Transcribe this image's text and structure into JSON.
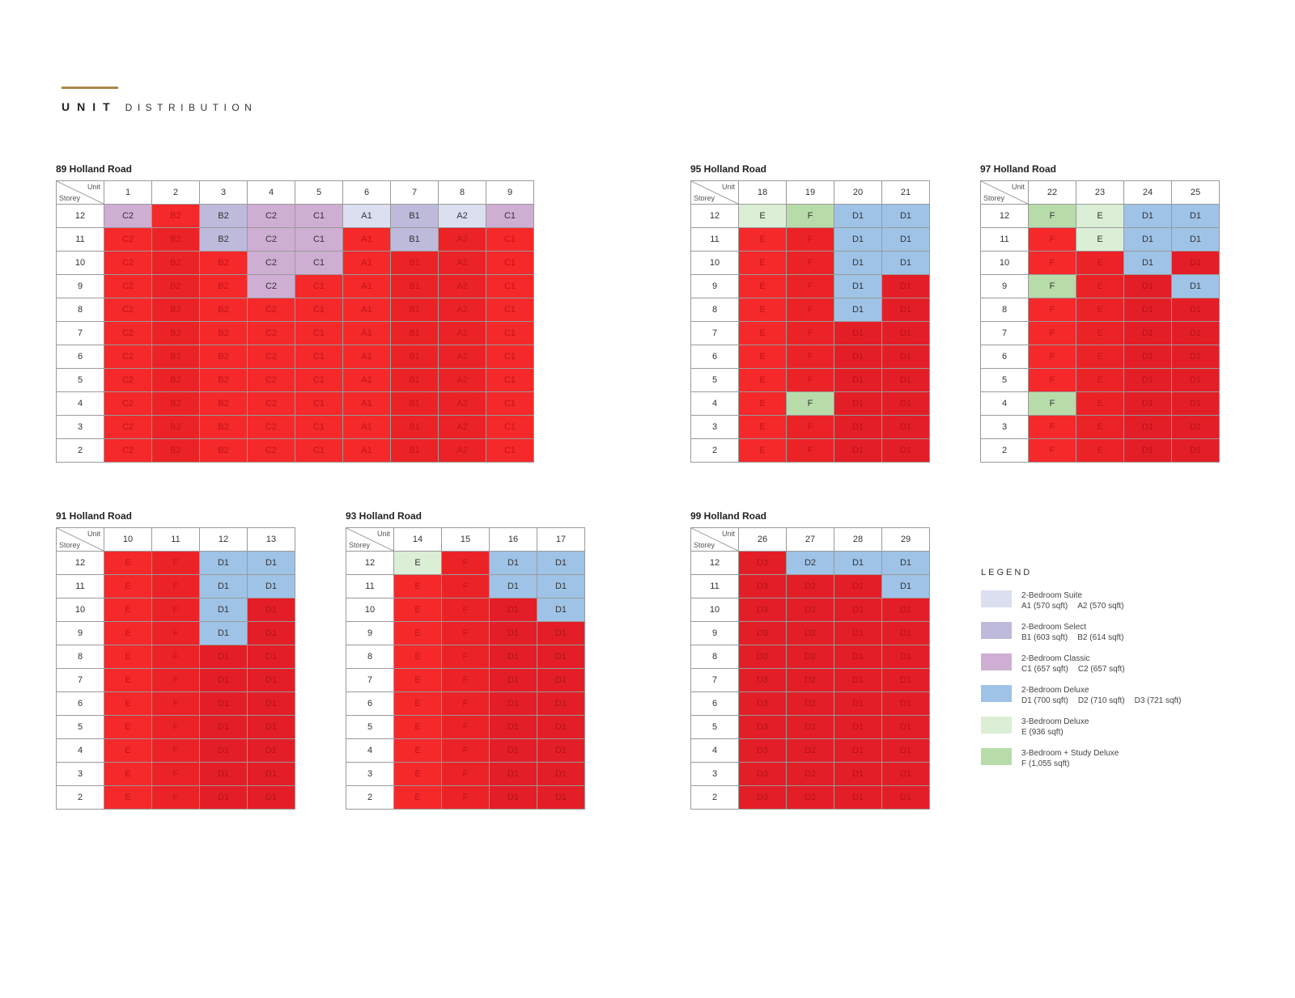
{
  "header": {
    "title_bold": "UNIT",
    "title_light": "DISTRIBUTION"
  },
  "corner": {
    "unit": "Unit",
    "storey": "Storey"
  },
  "colors": {
    "suite": "#dcdff0",
    "select": "#bebadb",
    "classic": "#cfaed3",
    "deluxe": "#9fc3e7",
    "three_bed": "#dbeed6",
    "study": "#b7dca9",
    "sold_red": "#f5282a"
  },
  "storeys": [
    "12",
    "11",
    "10",
    "9",
    "8",
    "7",
    "6",
    "5",
    "4",
    "3",
    "2"
  ],
  "blocks": [
    {
      "title": "89 Holland Road",
      "units": [
        "1",
        "2",
        "3",
        "4",
        "5",
        "6",
        "7",
        "8",
        "9"
      ],
      "rows": [
        [
          "C2",
          "B2",
          "B2",
          "C2",
          "C1",
          "A1",
          "B1",
          "A2",
          "C1"
        ],
        [
          "C2",
          "B2",
          "B2",
          "C2",
          "C1",
          "A1",
          "B1",
          "A2",
          "C1"
        ],
        [
          "C2",
          "B2",
          "B2",
          "C2",
          "C1",
          "A1",
          "B1",
          "A2",
          "C1"
        ],
        [
          "C2",
          "B2",
          "B2",
          "C2",
          "C1",
          "A1",
          "B1",
          "A2",
          "C1"
        ],
        [
          "C2",
          "B2",
          "B2",
          "C2",
          "C1",
          "A1",
          "B1",
          "A2",
          "C1"
        ],
        [
          "C2",
          "B2",
          "B2",
          "C2",
          "C1",
          "A1",
          "B1",
          "A2",
          "C1"
        ],
        [
          "C2",
          "B2",
          "B2",
          "C2",
          "C1",
          "A1",
          "B1",
          "A2",
          "C1"
        ],
        [
          "C2",
          "B2",
          "B2",
          "C2",
          "C1",
          "A1",
          "B1",
          "A2",
          "C1"
        ],
        [
          "C2",
          "B2",
          "B2",
          "C2",
          "C1",
          "A1",
          "B1",
          "A2",
          "C1"
        ],
        [
          "C2",
          "B2",
          "B2",
          "C2",
          "C1",
          "A1",
          "B1",
          "A2",
          "C1"
        ],
        [
          "C2",
          "B2",
          "B2",
          "C2",
          "C1",
          "A1",
          "B1",
          "A2",
          "C1"
        ]
      ],
      "types": [
        [
          "C",
          "R1",
          "Se",
          "C",
          "C",
          "S",
          "Se",
          "S",
          "C"
        ],
        [
          "R1",
          "R2",
          "Se",
          "C",
          "C",
          "R1",
          "Se",
          "R2",
          "R1"
        ],
        [
          "R1",
          "R2",
          "R1",
          "C",
          "C",
          "R1",
          "R2",
          "R2",
          "R1"
        ],
        [
          "R1",
          "R2",
          "R1",
          "C",
          "R1",
          "R1",
          "R2",
          "R2",
          "R1"
        ],
        [
          "R1",
          "R2",
          "R1",
          "R1",
          "R1",
          "R1",
          "R2",
          "R2",
          "R1"
        ],
        [
          "R1",
          "R2",
          "R1",
          "R1",
          "R1",
          "R1",
          "R2",
          "R2",
          "R1"
        ],
        [
          "R1",
          "R2",
          "R1",
          "R1",
          "R1",
          "R1",
          "R2",
          "R2",
          "R1"
        ],
        [
          "R1",
          "R2",
          "R1",
          "R1",
          "R1",
          "R1",
          "R2",
          "R2",
          "R1"
        ],
        [
          "R1",
          "R2",
          "R1",
          "R1",
          "R1",
          "R1",
          "R2",
          "R2",
          "R1"
        ],
        [
          "R1",
          "R2",
          "R1",
          "R1",
          "R1",
          "R1",
          "R2",
          "R2",
          "R1"
        ],
        [
          "R1",
          "R2",
          "R1",
          "R1",
          "R1",
          "R1",
          "R2",
          "R2",
          "R1"
        ]
      ]
    },
    {
      "title": "95 Holland Road",
      "units": [
        "18",
        "19",
        "20",
        "21"
      ],
      "rows": [
        [
          "E",
          "F",
          "D1",
          "D1"
        ],
        [
          "E",
          "F",
          "D1",
          "D1"
        ],
        [
          "E",
          "F",
          "D1",
          "D1"
        ],
        [
          "E",
          "F",
          "D1",
          "D1"
        ],
        [
          "E",
          "F",
          "D1",
          "D1"
        ],
        [
          "E",
          "F",
          "D1",
          "D1"
        ],
        [
          "E",
          "F",
          "D1",
          "D1"
        ],
        [
          "E",
          "F",
          "D1",
          "D1"
        ],
        [
          "E",
          "F",
          "D1",
          "D1"
        ],
        [
          "E",
          "F",
          "D1",
          "D1"
        ],
        [
          "E",
          "F",
          "D1",
          "D1"
        ]
      ],
      "types": [
        [
          "E",
          "F",
          "D",
          "D"
        ],
        [
          "R1",
          "R2",
          "D",
          "D"
        ],
        [
          "R1",
          "R2",
          "D",
          "D"
        ],
        [
          "R1",
          "R2",
          "D",
          "R3"
        ],
        [
          "R1",
          "R2",
          "D",
          "R3"
        ],
        [
          "R1",
          "R2",
          "R3",
          "R3"
        ],
        [
          "R1",
          "R2",
          "R3",
          "R3"
        ],
        [
          "R1",
          "R2",
          "R3",
          "R3"
        ],
        [
          "R1",
          "F",
          "R3",
          "R3"
        ],
        [
          "R1",
          "R2",
          "R3",
          "R3"
        ],
        [
          "R1",
          "R2",
          "R3",
          "R3"
        ]
      ]
    },
    {
      "title": "97 Holland Road",
      "units": [
        "22",
        "23",
        "24",
        "25"
      ],
      "rows": [
        [
          "F",
          "E",
          "D1",
          "D1"
        ],
        [
          "F",
          "E",
          "D1",
          "D1"
        ],
        [
          "F",
          "E",
          "D1",
          "D1"
        ],
        [
          "F",
          "E",
          "D1",
          "D1"
        ],
        [
          "F",
          "E",
          "D1",
          "D1"
        ],
        [
          "F",
          "E",
          "D1",
          "D1"
        ],
        [
          "F",
          "E",
          "D1",
          "D1"
        ],
        [
          "F",
          "E",
          "D1",
          "D1"
        ],
        [
          "F",
          "E",
          "D1",
          "D1"
        ],
        [
          "F",
          "E",
          "D1",
          "D1"
        ],
        [
          "F",
          "E",
          "D1",
          "D1"
        ]
      ],
      "types": [
        [
          "F",
          "E",
          "D",
          "D"
        ],
        [
          "R1",
          "E",
          "D",
          "D"
        ],
        [
          "R1",
          "R2",
          "D",
          "R3"
        ],
        [
          "F",
          "R2",
          "R3",
          "D"
        ],
        [
          "R1",
          "R2",
          "R3",
          "R3"
        ],
        [
          "R1",
          "R2",
          "R3",
          "R3"
        ],
        [
          "R1",
          "R2",
          "R3",
          "R3"
        ],
        [
          "R1",
          "R2",
          "R3",
          "R3"
        ],
        [
          "F",
          "R2",
          "R3",
          "R3"
        ],
        [
          "R1",
          "R2",
          "R3",
          "R3"
        ],
        [
          "R1",
          "R2",
          "R3",
          "R3"
        ]
      ]
    },
    {
      "title": "91 Holland Road",
      "units": [
        "10",
        "11",
        "12",
        "13"
      ],
      "rows": [
        [
          "E",
          "F",
          "D1",
          "D1"
        ],
        [
          "E",
          "F",
          "D1",
          "D1"
        ],
        [
          "E",
          "F",
          "D1",
          "D1"
        ],
        [
          "E",
          "F",
          "D1",
          "D1"
        ],
        [
          "E",
          "F",
          "D1",
          "D1"
        ],
        [
          "E",
          "F",
          "D1",
          "D1"
        ],
        [
          "E",
          "F",
          "D1",
          "D1"
        ],
        [
          "E",
          "F",
          "D1",
          "D1"
        ],
        [
          "E",
          "F",
          "D1",
          "D1"
        ],
        [
          "E",
          "F",
          "D1",
          "D1"
        ],
        [
          "E",
          "F",
          "D1",
          "D1"
        ]
      ],
      "types": [
        [
          "R1",
          "R2",
          "D",
          "D"
        ],
        [
          "R1",
          "R2",
          "D",
          "D"
        ],
        [
          "R1",
          "R2",
          "D",
          "R3"
        ],
        [
          "R1",
          "R2",
          "D",
          "R3"
        ],
        [
          "R1",
          "R2",
          "R3",
          "R3"
        ],
        [
          "R1",
          "R2",
          "R3",
          "R3"
        ],
        [
          "R1",
          "R2",
          "R3",
          "R3"
        ],
        [
          "R1",
          "R2",
          "R3",
          "R3"
        ],
        [
          "R1",
          "R2",
          "R3",
          "R3"
        ],
        [
          "R1",
          "R2",
          "R3",
          "R3"
        ],
        [
          "R1",
          "R2",
          "R3",
          "R3"
        ]
      ]
    },
    {
      "title": "93 Holland Road",
      "units": [
        "14",
        "15",
        "16",
        "17"
      ],
      "rows": [
        [
          "E",
          "F",
          "D1",
          "D1"
        ],
        [
          "E",
          "F",
          "D1",
          "D1"
        ],
        [
          "E",
          "F",
          "D1",
          "D1"
        ],
        [
          "E",
          "F",
          "D1",
          "D1"
        ],
        [
          "E",
          "F",
          "D1",
          "D1"
        ],
        [
          "E",
          "F",
          "D1",
          "D1"
        ],
        [
          "E",
          "F",
          "D1",
          "D1"
        ],
        [
          "E",
          "F",
          "D1",
          "D1"
        ],
        [
          "E",
          "F",
          "D1",
          "D1"
        ],
        [
          "E",
          "F",
          "D1",
          "D1"
        ],
        [
          "E",
          "F",
          "D1",
          "D1"
        ]
      ],
      "types": [
        [
          "E",
          "R2",
          "D",
          "D"
        ],
        [
          "R1",
          "R2",
          "D",
          "D"
        ],
        [
          "R1",
          "R2",
          "R3",
          "D"
        ],
        [
          "R1",
          "R2",
          "R3",
          "R3"
        ],
        [
          "R1",
          "R2",
          "R3",
          "R3"
        ],
        [
          "R1",
          "R2",
          "R3",
          "R3"
        ],
        [
          "R1",
          "R2",
          "R3",
          "R3"
        ],
        [
          "R1",
          "R2",
          "R3",
          "R3"
        ],
        [
          "R1",
          "R2",
          "R3",
          "R3"
        ],
        [
          "R1",
          "R2",
          "R3",
          "R3"
        ],
        [
          "R1",
          "R2",
          "R3",
          "R3"
        ]
      ]
    },
    {
      "title": "99 Holland Road",
      "units": [
        "26",
        "27",
        "28",
        "29"
      ],
      "rows": [
        [
          "D3",
          "D2",
          "D1",
          "D1"
        ],
        [
          "D3",
          "D2",
          "D1",
          "D1"
        ],
        [
          "D3",
          "D2",
          "D1",
          "D1"
        ],
        [
          "D3",
          "D2",
          "D1",
          "D1"
        ],
        [
          "D3",
          "D2",
          "D1",
          "D1"
        ],
        [
          "D3",
          "D2",
          "D1",
          "D1"
        ],
        [
          "D3",
          "D2",
          "D1",
          "D1"
        ],
        [
          "D3",
          "D2",
          "D1",
          "D1"
        ],
        [
          "D3",
          "D2",
          "D1",
          "D1"
        ],
        [
          "D3",
          "D2",
          "D1",
          "D1"
        ],
        [
          "D3",
          "D2",
          "D1",
          "D1"
        ]
      ],
      "types": [
        [
          "R3",
          "D",
          "D",
          "D"
        ],
        [
          "R3",
          "R3",
          "R3",
          "D"
        ],
        [
          "R3",
          "R3",
          "R3",
          "R3"
        ],
        [
          "R3",
          "R3",
          "R3",
          "R3"
        ],
        [
          "R3",
          "R3",
          "R3",
          "R3"
        ],
        [
          "R3",
          "R3",
          "R3",
          "R3"
        ],
        [
          "R3",
          "R3",
          "R3",
          "R3"
        ],
        [
          "R3",
          "R3",
          "R3",
          "R3"
        ],
        [
          "R3",
          "R3",
          "R3",
          "R3"
        ],
        [
          "R3",
          "R3",
          "R3",
          "R3"
        ],
        [
          "R3",
          "R3",
          "R3",
          "R3"
        ]
      ]
    }
  ],
  "legend": {
    "title": "LEGEND",
    "items": [
      {
        "name": "2-Bedroom Suite",
        "color": "#dcdff0",
        "sizes": [
          "A1 (570 sqft)",
          "A2 (570 sqft)"
        ]
      },
      {
        "name": "2-Bedroom Select",
        "color": "#bebadb",
        "sizes": [
          "B1 (603 sqft)",
          "B2 (614 sqft)"
        ]
      },
      {
        "name": "2-Bedroom Classic",
        "color": "#cfaed3",
        "sizes": [
          "C1 (657 sqft)",
          "C2 (657 sqft)"
        ]
      },
      {
        "name": "2-Bedroom Deluxe",
        "color": "#9fc3e7",
        "sizes": [
          "D1 (700 sqft)",
          "D2 (710 sqft)",
          "D3 (721 sqft)"
        ]
      },
      {
        "name": "3-Bedroom Deluxe",
        "color": "#dbeed6",
        "sizes": [
          "E (936 sqft)"
        ]
      },
      {
        "name": "3-Bedroom + Study Deluxe",
        "color": "#b7dca9",
        "sizes": [
          "F (1,055 sqft)"
        ]
      }
    ]
  }
}
